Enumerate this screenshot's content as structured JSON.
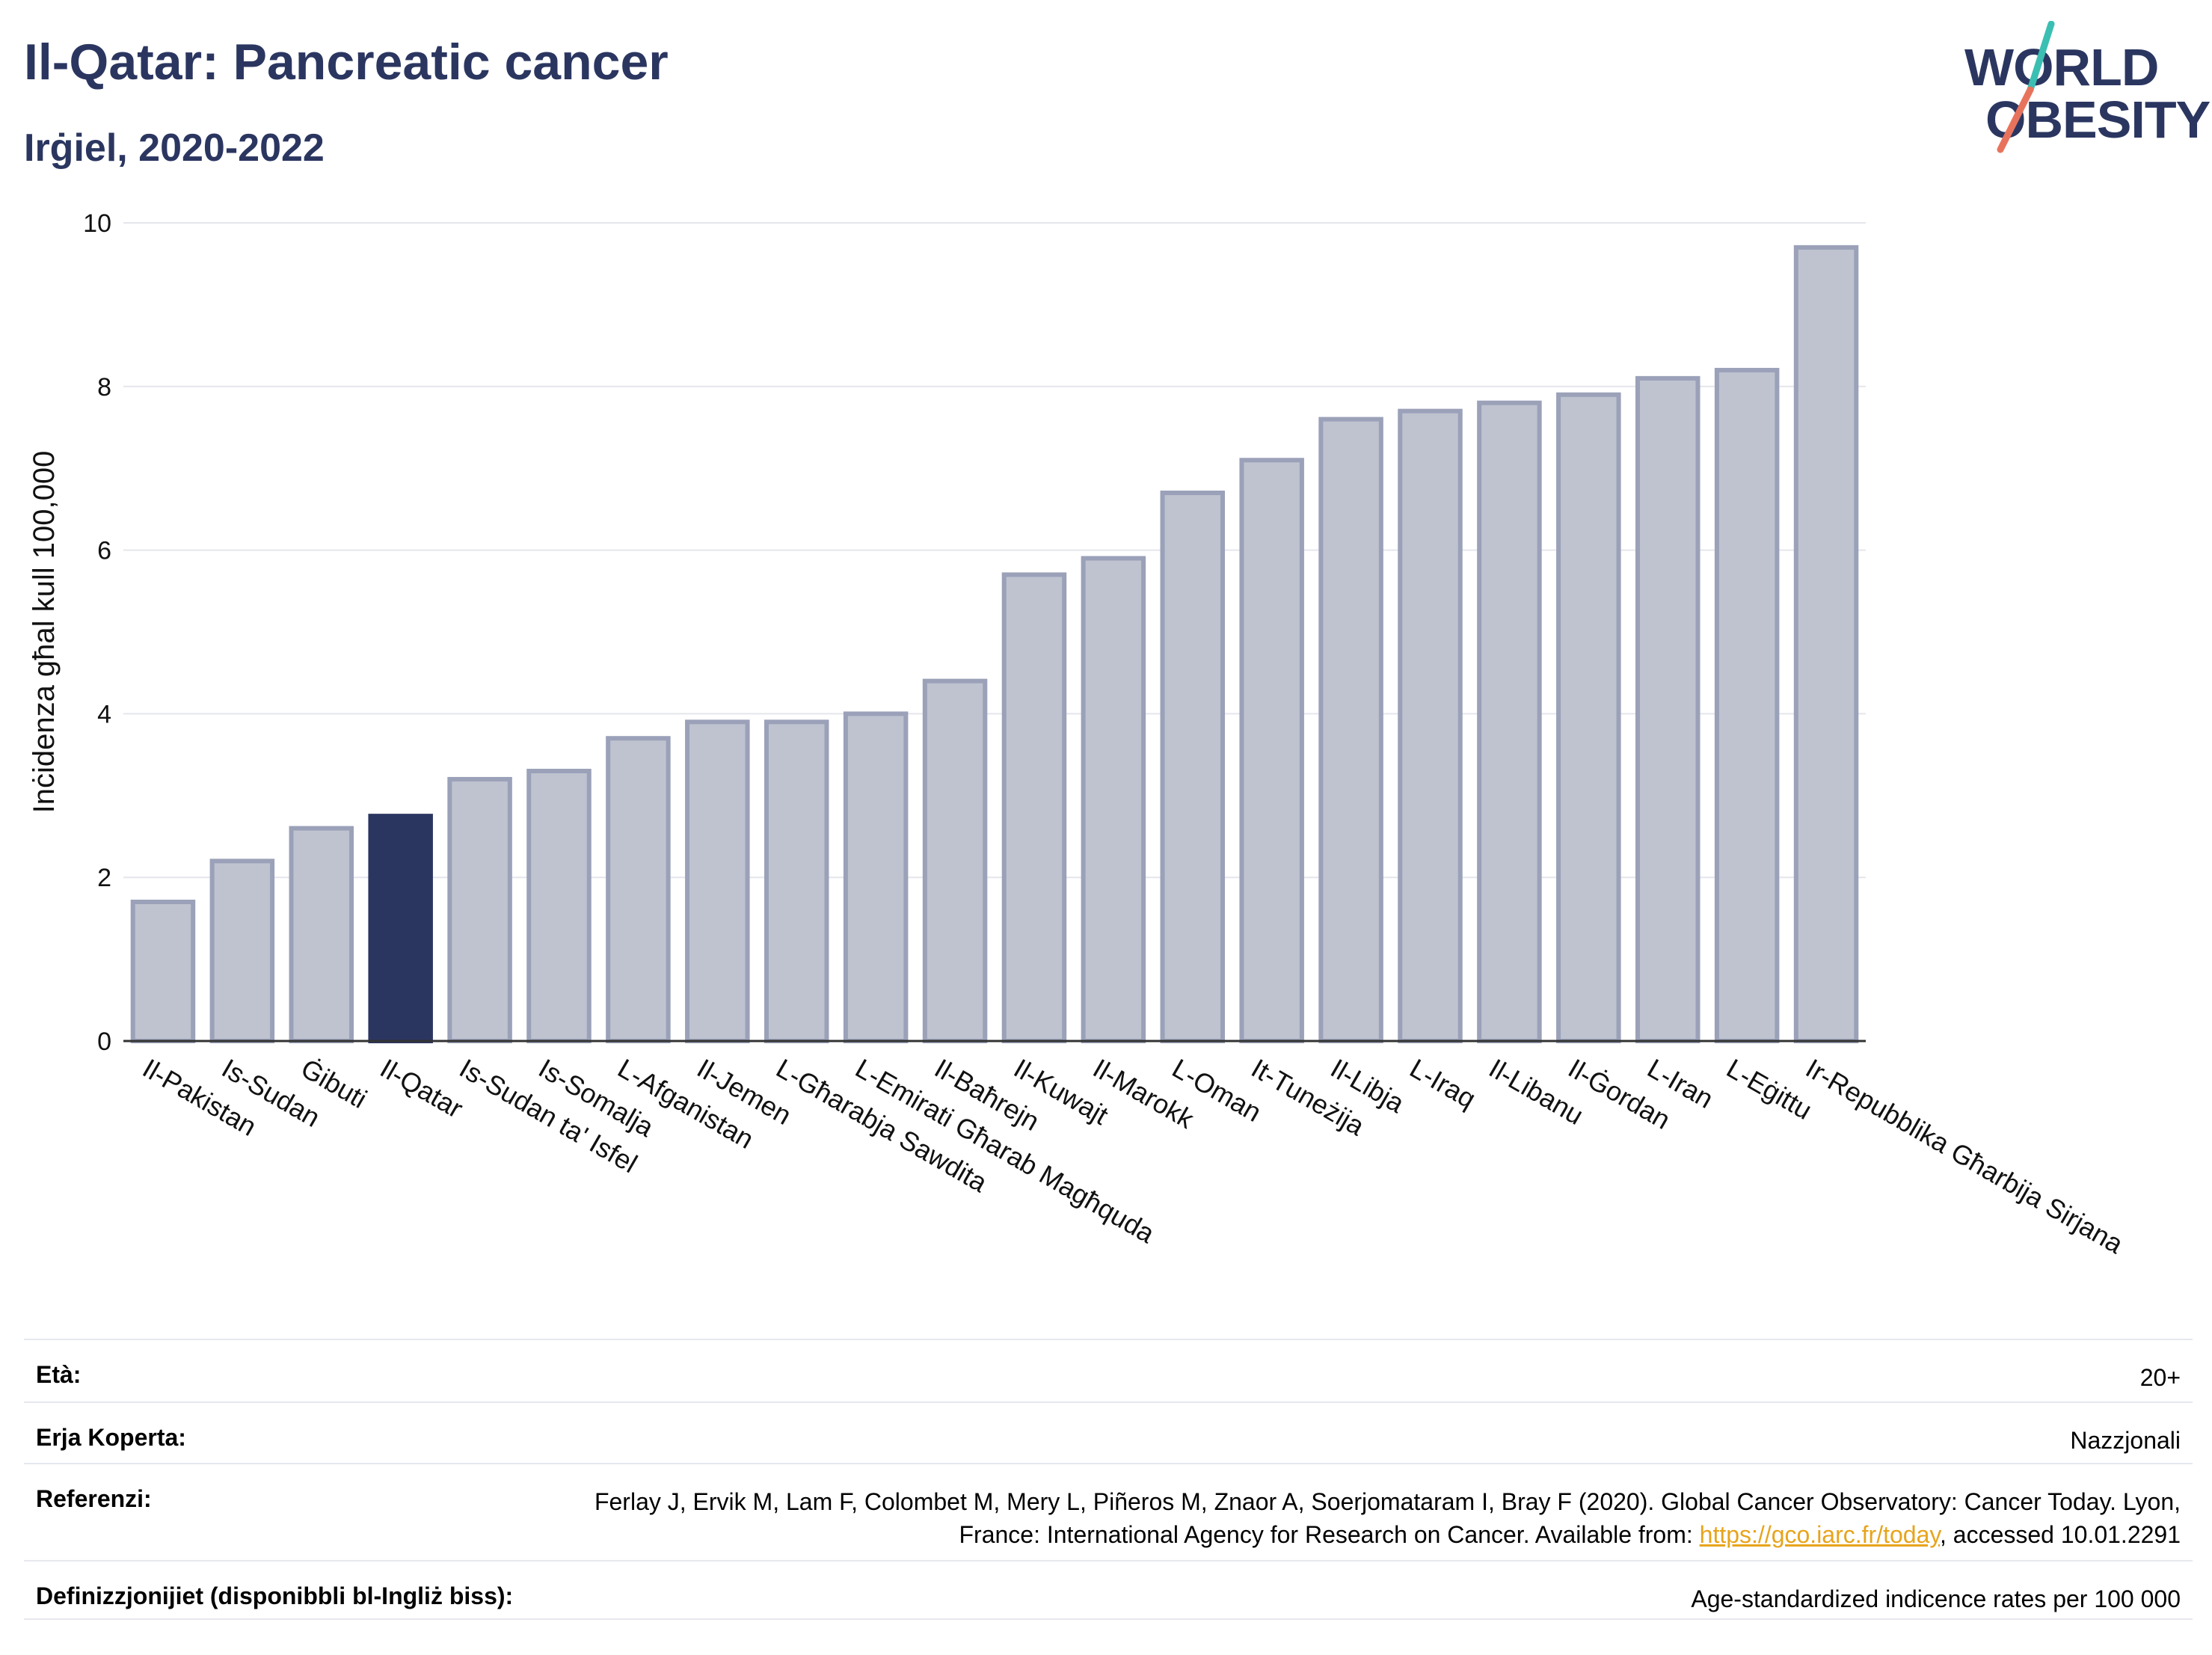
{
  "header": {
    "title": "Il-Qatar: Pancreatic cancer",
    "subtitle": "Irġiel, 2020-2022"
  },
  "logo": {
    "line1": "WORLD",
    "line2": "OBESITY",
    "colors": {
      "navy": "#2b3660",
      "teal": "#3bbfb2",
      "coral": "#e8735d"
    }
  },
  "chart_data": {
    "type": "bar",
    "ylabel": "Inċidenza għal kull 100,000",
    "ylim": [
      0,
      10
    ],
    "yticks": [
      0,
      2,
      4,
      6,
      8,
      10
    ],
    "grid": true,
    "highlight": "Il-Qatar",
    "colors": {
      "bar": "#bfc3d0",
      "bar_edge": "#9aa1b8",
      "highlight": "#2b3660"
    },
    "categories": [
      "Il-Pakistan",
      "Is-Sudan",
      "Ġibuti",
      "Il-Qatar",
      "Is-Sudan ta' Isfel",
      "Is-Somalja",
      "L-Afganistan",
      "Il-Jemen",
      "L-Għarabja Sawdita",
      "L-Emirati Għarab Magħquda",
      "Il-Baħrejn",
      "Il-Kuwajt",
      "Il-Marokk",
      "L-Oman",
      "It-Tuneżija",
      "Il-Libja",
      "L-Iraq",
      "Il-Libanu",
      "Il-Ġordan",
      "L-Iran",
      "L-Eġittu",
      "Ir-Repubblika Għarbija Sirjana"
    ],
    "values": [
      1.7,
      2.2,
      2.6,
      2.75,
      3.2,
      3.3,
      3.7,
      3.9,
      3.9,
      4.0,
      4.4,
      5.7,
      5.9,
      6.7,
      7.1,
      7.6,
      7.7,
      7.8,
      7.9,
      8.1,
      8.2,
      9.7
    ]
  },
  "info": {
    "age_label": "Età:",
    "age_value": "20+",
    "area_label": "Erja Koperta:",
    "area_value": "Nazzjonali",
    "ref_label": "Referenzi:",
    "ref_text1": "Ferlay J, Ervik M, Lam F, Colombet M, Mery L, Piñeros M, Znaor A, Soerjomataram I, Bray F (2020). Global Cancer Observatory: Cancer Today. Lyon, France: International Agency for Research on Cancer. Available from: ",
    "ref_link": "https://gco.iarc.fr/today",
    "ref_text2": ", accessed 10.01.2291",
    "def_label": "Definizzjonijiet (disponibbli bl-Ingliż biss):",
    "def_value": "Age-standardized indicence rates per 100 000"
  }
}
